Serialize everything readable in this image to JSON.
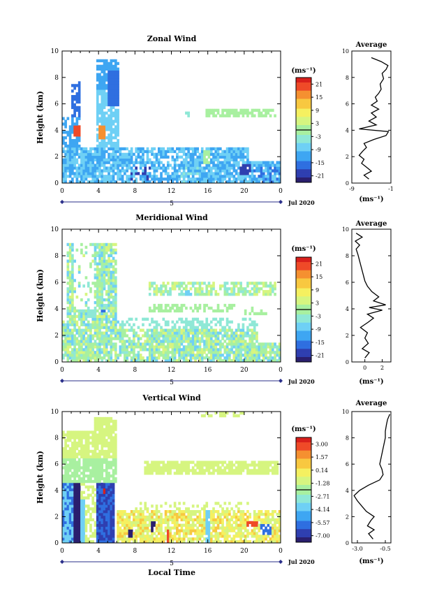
{
  "palette": [
    "#2a1f6e",
    "#2f3fb0",
    "#2f6fe0",
    "#3ea6f2",
    "#6fd0f5",
    "#8fe8d6",
    "#a8f0a0",
    "#d6f580",
    "#f5f060",
    "#f8c840",
    "#f59030",
    "#ef4a28",
    "#d8201c"
  ],
  "shared": {
    "x_ticks": [
      "0",
      "4",
      "8",
      "12",
      "16",
      "20",
      "0"
    ],
    "date_marker": "5",
    "date_label": "Jul 2020",
    "unit_label": "(ms⁻¹)",
    "profile_title": "Average",
    "profile_unit": "(ms⁻¹)",
    "y_label": "Height (km)",
    "y_ticks": [
      "0",
      "2",
      "4",
      "6",
      "8",
      "10"
    ],
    "x_label": "Local Time"
  },
  "chart_data": [
    {
      "type": "heatmap",
      "title": "Zonal Wind",
      "x_range": [
        0,
        24
      ],
      "y_range": [
        0,
        10
      ],
      "colorbar_ticks": [
        "21",
        "15",
        "9",
        "3",
        "-3",
        "-9",
        "-15",
        "-21"
      ],
      "profile_xticks": [
        "-9",
        "-1"
      ],
      "profile_xlim": [
        -9,
        -1
      ],
      "profile": [
        [
          -5.5,
          0.3
        ],
        [
          -6.5,
          0.6
        ],
        [
          -5,
          0.9
        ],
        [
          -6,
          1.2
        ],
        [
          -7,
          1.5
        ],
        [
          -6.5,
          1.8
        ],
        [
          -7.5,
          2.1
        ],
        [
          -6.8,
          2.4
        ],
        [
          -6,
          2.7
        ],
        [
          -6.5,
          3.0
        ],
        [
          -4.5,
          3.3
        ],
        [
          -2,
          3.6
        ],
        [
          -1.5,
          3.9
        ],
        [
          -7.5,
          4.1
        ],
        [
          -4,
          4.4
        ],
        [
          -5.5,
          4.7
        ],
        [
          -4,
          5.0
        ],
        [
          -5,
          5.3
        ],
        [
          -3.5,
          5.6
        ],
        [
          -5,
          5.9
        ],
        [
          -3.8,
          6.2
        ],
        [
          -4.2,
          6.5
        ],
        [
          -3.5,
          6.8
        ],
        [
          -3,
          7.1
        ],
        [
          -3.2,
          7.5
        ],
        [
          -2.5,
          7.9
        ],
        [
          -2.8,
          8.3
        ],
        [
          -2.0,
          8.6
        ],
        [
          -1.6,
          8.9
        ],
        [
          -3,
          9.2
        ],
        [
          -5,
          9.5
        ]
      ]
    },
    {
      "type": "heatmap",
      "title": "Meridional Wind",
      "x_range": [
        0,
        24
      ],
      "y_range": [
        0,
        10
      ],
      "colorbar_ticks": [
        "21",
        "15",
        "9",
        "3",
        "-3",
        "-9",
        "-15",
        "-21"
      ],
      "profile_xticks": [
        "0",
        "2"
      ],
      "profile_xlim": [
        -1.5,
        3
      ],
      "profile": [
        [
          0,
          0.3
        ],
        [
          0.5,
          0.7
        ],
        [
          -0.3,
          1.0
        ],
        [
          0.4,
          1.4
        ],
        [
          0,
          1.8
        ],
        [
          0.3,
          2.2
        ],
        [
          -0.5,
          2.6
        ],
        [
          0.4,
          3.0
        ],
        [
          1.0,
          3.3
        ],
        [
          0.3,
          3.6
        ],
        [
          2.0,
          3.9
        ],
        [
          0.5,
          4.1
        ],
        [
          2.4,
          4.3
        ],
        [
          1.0,
          4.6
        ],
        [
          1.6,
          4.9
        ],
        [
          0.8,
          5.3
        ],
        [
          0.3,
          5.7
        ],
        [
          0,
          6.1
        ],
        [
          -0.2,
          6.6
        ],
        [
          -0.4,
          7.1
        ],
        [
          -0.6,
          7.6
        ],
        [
          -0.8,
          8.1
        ],
        [
          -1.0,
          8.5
        ],
        [
          -0.6,
          8.8
        ],
        [
          -1.1,
          9.1
        ],
        [
          -0.3,
          9.4
        ],
        [
          -1.0,
          9.7
        ]
      ]
    },
    {
      "type": "heatmap",
      "title": "Vertical Wind",
      "x_range": [
        0,
        24
      ],
      "y_range": [
        0,
        10
      ],
      "colorbar_ticks": [
        "3.00",
        "1.57",
        "0.14",
        "-1.28",
        "-2.71",
        "-4.14",
        "-5.57",
        "-7.00"
      ],
      "profile_xticks": [
        "-3.0",
        "-0.5"
      ],
      "profile_xlim": [
        -3.5,
        0
      ],
      "profile": [
        [
          -1.6,
          0.3
        ],
        [
          -2.0,
          0.7
        ],
        [
          -1.5,
          1.0
        ],
        [
          -2.1,
          1.3
        ],
        [
          -1.8,
          1.7
        ],
        [
          -1.5,
          2.0
        ],
        [
          -2.2,
          2.4
        ],
        [
          -2.6,
          2.8
        ],
        [
          -3.0,
          3.2
        ],
        [
          -3.3,
          3.6
        ],
        [
          -2.8,
          4.0
        ],
        [
          -2.0,
          4.4
        ],
        [
          -1.0,
          4.8
        ],
        [
          -0.7,
          5.2
        ],
        [
          -0.8,
          5.6
        ],
        [
          -1.0,
          6.0
        ],
        [
          -0.9,
          6.4
        ],
        [
          -0.8,
          6.8
        ],
        [
          -0.7,
          7.2
        ],
        [
          -0.6,
          7.6
        ],
        [
          -0.5,
          8.0
        ],
        [
          -0.5,
          8.5
        ],
        [
          -0.4,
          9.0
        ],
        [
          -0.3,
          9.4
        ],
        [
          -0.1,
          9.8
        ]
      ]
    }
  ]
}
